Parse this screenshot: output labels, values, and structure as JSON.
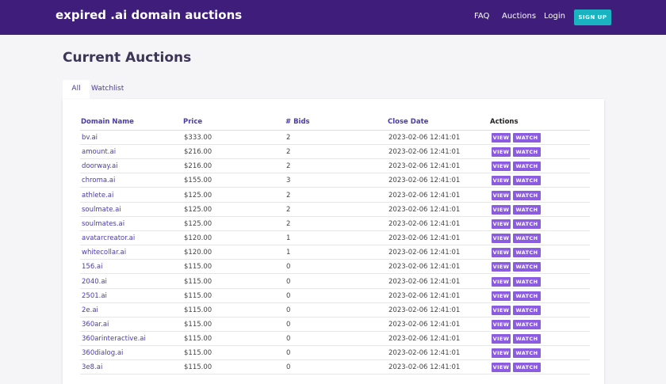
{
  "header": {
    "brand": "expired .ai domain auctions",
    "nav": [
      "FAQ",
      "Auctions",
      "Login"
    ],
    "signup": "SIGN UP"
  },
  "page": {
    "title": "Current Auctions",
    "tabs": [
      "All",
      "Watchlist"
    ]
  },
  "table": {
    "columns": [
      "Domain Name",
      "Price",
      "# Bids",
      "Close Date",
      "Actions"
    ],
    "action_labels": {
      "view": "VIEW",
      "watch": "WATCH"
    },
    "rows": [
      {
        "domain": "bv.ai",
        "price": "$333.00",
        "bids": "2",
        "close": "2023-02-06 12:41:01"
      },
      {
        "domain": "amount.ai",
        "price": "$216.00",
        "bids": "2",
        "close": "2023-02-06 12:41:01"
      },
      {
        "domain": "doorway.ai",
        "price": "$216.00",
        "bids": "2",
        "close": "2023-02-06 12:41:01"
      },
      {
        "domain": "chroma.ai",
        "price": "$155.00",
        "bids": "3",
        "close": "2023-02-06 12:41:01"
      },
      {
        "domain": "athlete.ai",
        "price": "$125.00",
        "bids": "2",
        "close": "2023-02-06 12:41:01"
      },
      {
        "domain": "soulmate.ai",
        "price": "$125.00",
        "bids": "2",
        "close": "2023-02-06 12:41:01"
      },
      {
        "domain": "soulmates.ai",
        "price": "$125.00",
        "bids": "2",
        "close": "2023-02-06 12:41:01"
      },
      {
        "domain": "avatarcreator.ai",
        "price": "$120.00",
        "bids": "1",
        "close": "2023-02-06 12:41:01"
      },
      {
        "domain": "whitecollar.ai",
        "price": "$120.00",
        "bids": "1",
        "close": "2023-02-06 12:41:01"
      },
      {
        "domain": "156.ai",
        "price": "$115.00",
        "bids": "0",
        "close": "2023-02-06 12:41:01"
      },
      {
        "domain": "2040.ai",
        "price": "$115.00",
        "bids": "0",
        "close": "2023-02-06 12:41:01"
      },
      {
        "domain": "2501.ai",
        "price": "$115.00",
        "bids": "0",
        "close": "2023-02-06 12:41:01"
      },
      {
        "domain": "2e.ai",
        "price": "$115.00",
        "bids": "0",
        "close": "2023-02-06 12:41:01"
      },
      {
        "domain": "360ar.ai",
        "price": "$115.00",
        "bids": "0",
        "close": "2023-02-06 12:41:01"
      },
      {
        "domain": "360arinteractive.ai",
        "price": "$115.00",
        "bids": "0",
        "close": "2023-02-06 12:41:01"
      },
      {
        "domain": "360dialog.ai",
        "price": "$115.00",
        "bids": "0",
        "close": "2023-02-06 12:41:01"
      },
      {
        "domain": "3e8.ai",
        "price": "$115.00",
        "bids": "0",
        "close": "2023-02-06 12:41:01"
      }
    ]
  }
}
